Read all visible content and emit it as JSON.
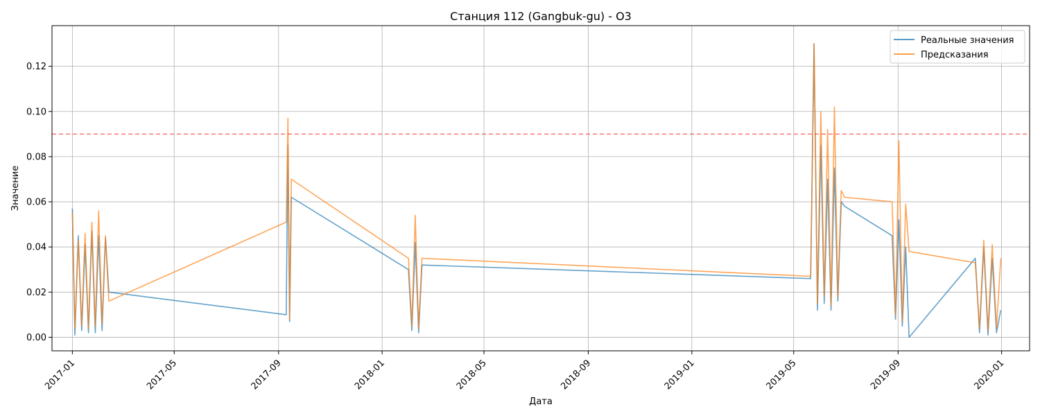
{
  "chart_data": {
    "type": "line",
    "title": "Станция 112 (Gangbuk-gu) - O3",
    "xlabel": "Дата",
    "ylabel": "Значение",
    "x_type": "date",
    "xlim": [
      "2016-12-08",
      "2020-02-03"
    ],
    "ylim": [
      -0.006,
      0.138
    ],
    "x_ticks": [
      "2017-01",
      "2017-05",
      "2017-09",
      "2018-01",
      "2018-05",
      "2018-09",
      "2019-01",
      "2019-05",
      "2019-09",
      "2020-01"
    ],
    "x_tick_dates": [
      "2017-01-01",
      "2017-05-01",
      "2017-09-01",
      "2018-01-01",
      "2018-05-01",
      "2018-09-01",
      "2019-01-01",
      "2019-05-01",
      "2019-09-01",
      "2020-01-01"
    ],
    "y_ticks": [
      0.0,
      0.02,
      0.04,
      0.06,
      0.08,
      0.1,
      0.12
    ],
    "y_tick_labels": [
      "0.00",
      "0.02",
      "0.04",
      "0.06",
      "0.08",
      "0.10",
      "0.12"
    ],
    "grid": true,
    "legend_position": "top-right",
    "threshold": {
      "y": 0.09,
      "color": "#ff0000",
      "style": "dashed"
    },
    "series": [
      {
        "name": "Реальные значения",
        "color": "#1f77b4",
        "x": [
          "2017-01-01",
          "2017-01-04",
          "2017-01-08",
          "2017-01-12",
          "2017-01-16",
          "2017-01-20",
          "2017-01-24",
          "2017-01-28",
          "2017-02-01",
          "2017-02-05",
          "2017-02-09",
          "2017-02-13",
          "2017-09-10",
          "2017-09-12",
          "2017-09-14",
          "2017-09-16",
          "2018-02-01",
          "2018-02-05",
          "2018-02-09",
          "2018-02-13",
          "2018-02-17",
          "2019-05-21",
          "2019-05-25",
          "2019-05-29",
          "2019-06-02",
          "2019-06-06",
          "2019-06-10",
          "2019-06-14",
          "2019-06-18",
          "2019-06-22",
          "2019-06-26",
          "2019-06-30",
          "2019-08-25",
          "2019-08-29",
          "2019-09-02",
          "2019-09-06",
          "2019-09-10",
          "2019-09-14",
          "2019-12-01",
          "2019-12-06",
          "2019-12-11",
          "2019-12-16",
          "2019-12-21",
          "2019-12-26",
          "2019-12-31"
        ],
        "y": [
          0.057,
          0.001,
          0.045,
          0.003,
          0.041,
          0.002,
          0.047,
          0.002,
          0.045,
          0.003,
          0.044,
          0.02,
          0.01,
          0.085,
          0.007,
          0.062,
          0.03,
          0.003,
          0.042,
          0.002,
          0.032,
          0.026,
          0.13,
          0.012,
          0.085,
          0.015,
          0.07,
          0.012,
          0.075,
          0.016,
          0.06,
          0.058,
          0.045,
          0.008,
          0.052,
          0.005,
          0.04,
          0.0,
          0.035,
          0.002,
          0.04,
          0.001,
          0.035,
          0.002,
          0.012
        ]
      },
      {
        "name": "Предсказания",
        "color": "#ff7f0e",
        "x": [
          "2017-01-01",
          "2017-01-04",
          "2017-01-08",
          "2017-01-12",
          "2017-01-16",
          "2017-01-20",
          "2017-01-24",
          "2017-01-28",
          "2017-02-01",
          "2017-02-05",
          "2017-02-09",
          "2017-02-13",
          "2017-09-10",
          "2017-09-12",
          "2017-09-14",
          "2017-09-16",
          "2018-02-01",
          "2018-02-05",
          "2018-02-09",
          "2018-02-13",
          "2018-02-17",
          "2019-05-21",
          "2019-05-25",
          "2019-05-29",
          "2019-06-02",
          "2019-06-06",
          "2019-06-10",
          "2019-06-14",
          "2019-06-18",
          "2019-06-22",
          "2019-06-26",
          "2019-06-30",
          "2019-08-25",
          "2019-08-29",
          "2019-09-02",
          "2019-09-06",
          "2019-09-10",
          "2019-09-14",
          "2019-12-01",
          "2019-12-06",
          "2019-12-11",
          "2019-12-16",
          "2019-12-21",
          "2019-12-26",
          "2019-12-31"
        ],
        "y": [
          0.055,
          0.004,
          0.043,
          0.005,
          0.046,
          0.004,
          0.051,
          0.005,
          0.056,
          0.006,
          0.045,
          0.016,
          0.051,
          0.097,
          0.008,
          0.07,
          0.035,
          0.005,
          0.054,
          0.004,
          0.035,
          0.027,
          0.13,
          0.015,
          0.1,
          0.018,
          0.092,
          0.014,
          0.102,
          0.018,
          0.065,
          0.062,
          0.06,
          0.01,
          0.087,
          0.007,
          0.059,
          0.038,
          0.033,
          0.004,
          0.043,
          0.003,
          0.041,
          0.004,
          0.035
        ]
      }
    ]
  }
}
